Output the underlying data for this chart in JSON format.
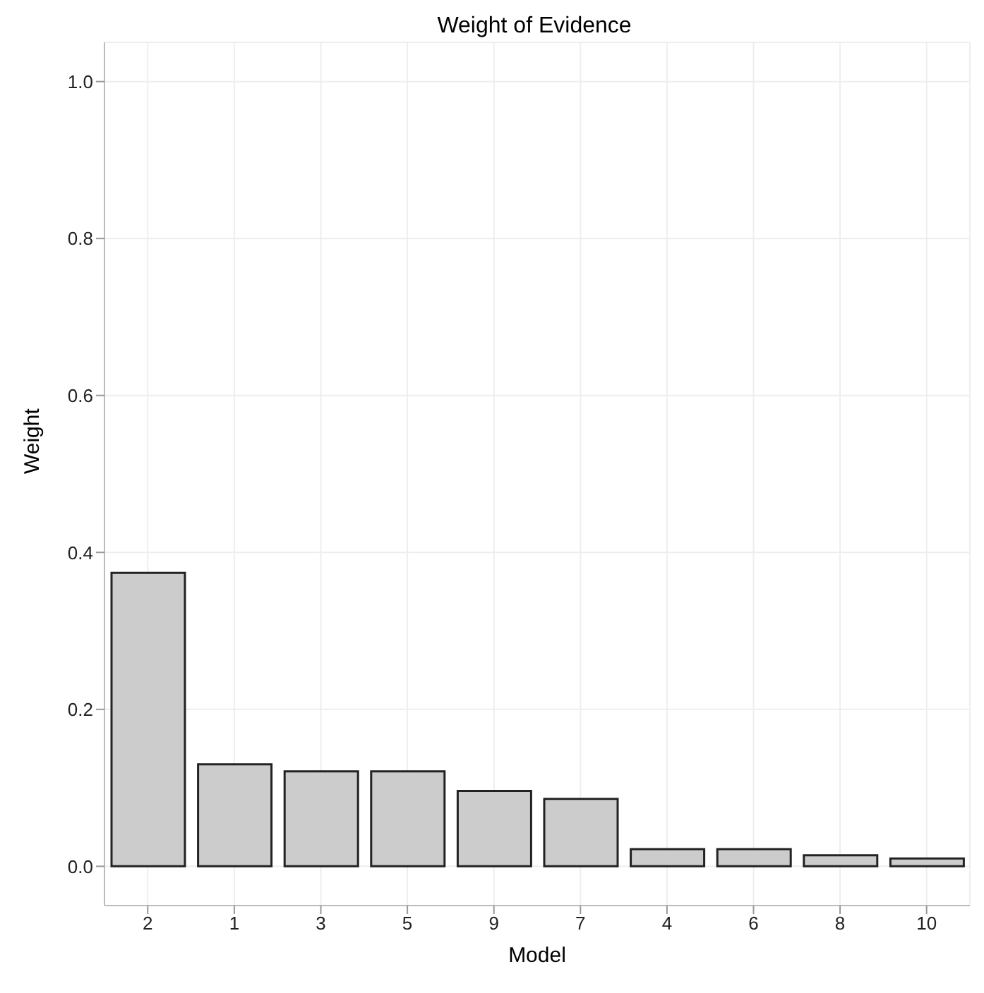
{
  "chart_data": {
    "type": "bar",
    "title": "Weight of Evidence",
    "xlabel": "Model",
    "ylabel": "Weight",
    "categories": [
      "2",
      "1",
      "3",
      "5",
      "9",
      "7",
      "4",
      "6",
      "8",
      "10"
    ],
    "values": [
      0.374,
      0.13,
      0.121,
      0.121,
      0.096,
      0.086,
      0.022,
      0.022,
      0.014,
      0.01
    ],
    "color": "#cccccc",
    "ylim": [
      -0.05,
      1.05
    ],
    "yticks": [
      {
        "value": 0,
        "label": "0.0"
      },
      0.2,
      0.4,
      0.6,
      0.8,
      {
        "value": 1,
        "label": "1.0"
      }
    ],
    "grid": true
  }
}
